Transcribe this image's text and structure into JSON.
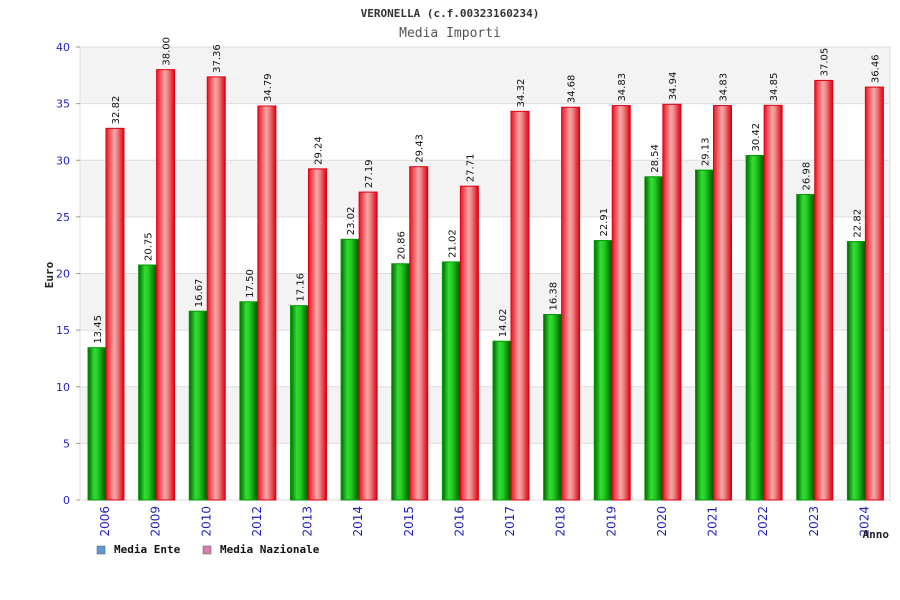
{
  "chart_data": {
    "type": "bar",
    "title": "VERONELLA (c.f.00323160234)",
    "subtitle": "Media Importi",
    "ylabel": "Euro",
    "xlabel": "Anno",
    "ylim": [
      0,
      40
    ],
    "yticks": [
      0,
      5,
      10,
      15,
      20,
      25,
      30,
      35,
      40
    ],
    "grid": true,
    "legend_position": "bottom-left",
    "categories": [
      "2006",
      "2009",
      "2010",
      "2012",
      "2013",
      "2014",
      "2015",
      "2016",
      "2017",
      "2018",
      "2019",
      "2020",
      "2021",
      "2022",
      "2023",
      "2024"
    ],
    "series": [
      {
        "name": "Media Ente",
        "legend_color": "#5b9bd5",
        "color": "#22bb22",
        "values": [
          13.45,
          20.75,
          16.67,
          17.5,
          17.16,
          23.02,
          20.86,
          21.02,
          14.02,
          16.38,
          22.91,
          28.54,
          29.13,
          30.42,
          26.98,
          22.82
        ],
        "labels": [
          "13.45",
          "20.75",
          "16.67",
          "17.50",
          "17.16",
          "23.02",
          "20.86",
          "21.02",
          "14.02",
          "16.38",
          "22.91",
          "28.54",
          "29.13",
          "30.42",
          "26.98",
          "22.82"
        ]
      },
      {
        "name": "Media Nazionale",
        "legend_color": "#d77fb3",
        "color": "#ee2233",
        "values": [
          32.82,
          38.0,
          37.36,
          34.79,
          29.24,
          27.19,
          29.43,
          27.71,
          34.32,
          34.68,
          34.83,
          34.94,
          34.83,
          34.85,
          37.05,
          36.46
        ],
        "labels": [
          "32.82",
          "38.00",
          "37.36",
          "34.79",
          "29.24",
          "27.19",
          "29.43",
          "27.71",
          "34.32",
          "34.68",
          "34.83",
          "34.94",
          "34.83",
          "34.85",
          "37.05",
          "36.46"
        ]
      }
    ]
  }
}
